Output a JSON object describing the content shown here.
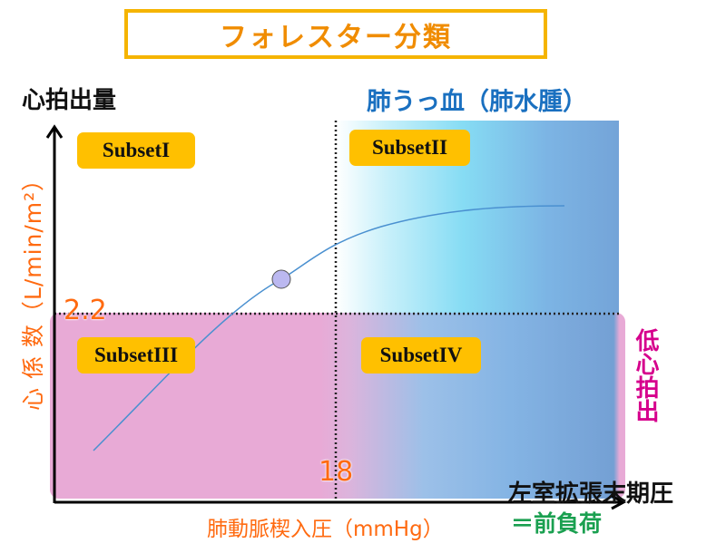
{
  "title": "フォレスター分類",
  "y_axis": {
    "title": "心拍出量",
    "label": "心 係 数（L/min/m²）",
    "threshold": "2.2"
  },
  "x_axis": {
    "title": "左室拡張末期圧",
    "subtitle": "＝前負荷",
    "label": "肺動脈楔入圧（mmHg）",
    "threshold": "18"
  },
  "regions": {
    "congestion": "肺うっ血（肺水腫）",
    "low_output": "低心拍出"
  },
  "subsets": [
    "SubsetI",
    "SubsetII",
    "SubsetIII",
    "SubsetIV"
  ],
  "colors": {
    "subset_bg": "#FFC000",
    "pink": "#E8AAD6",
    "blue": "#74A4D8",
    "curve": "#4A90D0",
    "marker": "#BBB8F0"
  }
}
